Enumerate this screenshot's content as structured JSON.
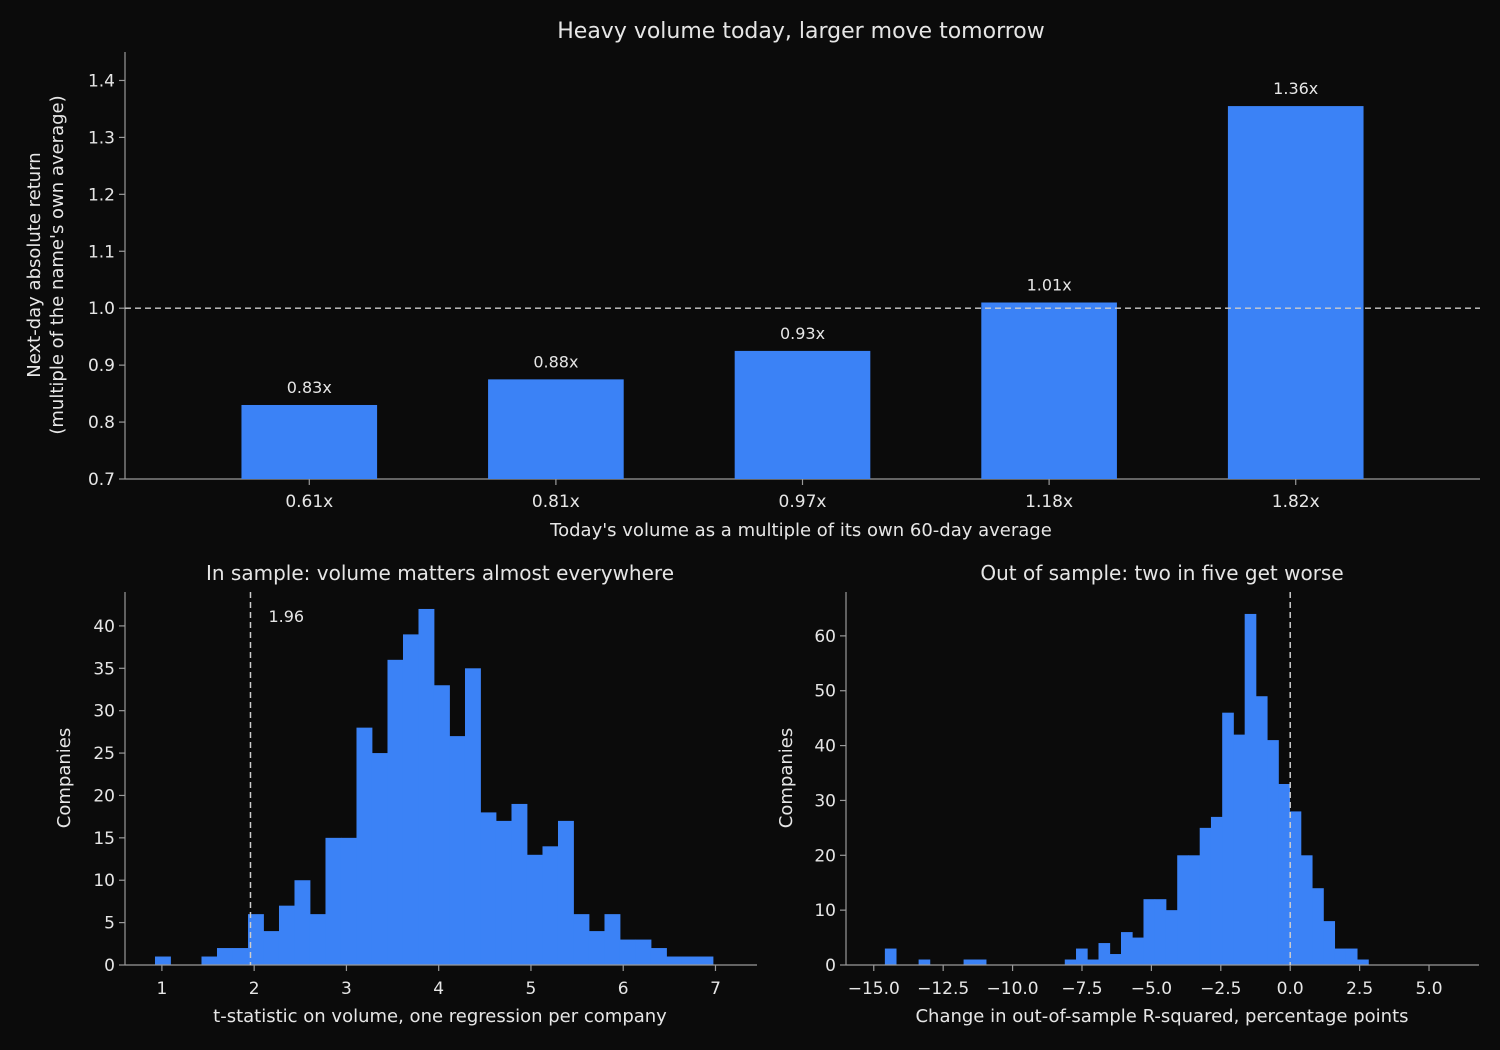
{
  "colors": {
    "background": "#0b0b0b",
    "bar": "#3b82f6",
    "text": "#e6e6e6",
    "axis": "#9a9a9a",
    "reference_line": "#cccccc"
  },
  "chart_data": [
    {
      "type": "bar",
      "title": "Heavy volume today, larger move tomorrow",
      "xlabel": "Today's volume as a multiple of its own 60-day average",
      "ylabel_lines": [
        "Next-day absolute return",
        "(multiple of the name's own average)"
      ],
      "categories": [
        "0.61x",
        "0.81x",
        "0.97x",
        "1.18x",
        "1.82x"
      ],
      "values": [
        0.83,
        0.875,
        0.925,
        1.01,
        1.355
      ],
      "value_labels": [
        "0.83x",
        "0.88x",
        "0.93x",
        "1.01x",
        "1.36x"
      ],
      "ylim": [
        0.7,
        1.45
      ],
      "yticks": [
        0.7,
        0.8,
        0.9,
        1.0,
        1.1,
        1.2,
        1.3,
        1.4
      ],
      "ytick_labels": [
        "0.7",
        "0.8",
        "0.9",
        "1.0",
        "1.1",
        "1.2",
        "1.3",
        "1.4"
      ],
      "reference_line": {
        "y": 1.0,
        "style": "dashed"
      },
      "grid": false
    },
    {
      "type": "histogram",
      "title": "In sample: volume matters almost everywhere",
      "xlabel": "t-statistic on volume, one regression per company",
      "ylabel": "Companies",
      "xlim": [
        0.6,
        7.45
      ],
      "ylim": [
        0,
        44
      ],
      "xticks": [
        1,
        2,
        3,
        4,
        5,
        6,
        7
      ],
      "xtick_labels": [
        "1",
        "2",
        "3",
        "4",
        "5",
        "6",
        "7"
      ],
      "yticks": [
        0,
        5,
        10,
        15,
        20,
        25,
        30,
        35,
        40
      ],
      "ytick_labels": [
        "0",
        "5",
        "10",
        "15",
        "20",
        "25",
        "30",
        "35",
        "40"
      ],
      "bins_start": 0.925,
      "bin_width": 0.168,
      "counts": [
        1,
        0,
        0,
        1,
        2,
        2,
        6,
        4,
        7,
        10,
        6,
        15,
        15,
        28,
        25,
        36,
        39,
        42,
        33,
        27,
        35,
        18,
        17,
        19,
        13,
        14,
        17,
        6,
        4,
        6,
        3,
        3,
        2,
        1,
        1,
        1
      ],
      "reference_line": {
        "x": 1.96,
        "label": "1.96",
        "style": "dashed"
      },
      "grid": false
    },
    {
      "type": "histogram",
      "title": "Out of sample: two in five get worse",
      "xlabel": "Change in out-of-sample R-squared, percentage points",
      "ylabel": "Companies",
      "xlim": [
        -16.0,
        6.8
      ],
      "ylim": [
        0,
        68
      ],
      "xticks": [
        -15,
        -12.5,
        -10,
        -7.5,
        -5,
        -2.5,
        0,
        2.5,
        5
      ],
      "xtick_labels": [
        "−15.0",
        "−12.5",
        "−10.0",
        "−7.5",
        "−5.0",
        "−2.5",
        "0.0",
        "2.5",
        "5.0"
      ],
      "yticks": [
        0,
        10,
        20,
        30,
        40,
        50,
        60
      ],
      "ytick_labels": [
        "0",
        "10",
        "20",
        "30",
        "40",
        "50",
        "60"
      ],
      "bins_start": -14.6,
      "bin_width": 0.405,
      "counts": [
        3,
        0,
        0,
        1,
        0,
        0,
        0,
        1,
        1,
        0,
        0,
        0,
        0,
        0,
        0,
        0,
        1,
        3,
        1,
        4,
        2,
        6,
        5,
        12,
        12,
        10,
        20,
        20,
        25,
        27,
        46,
        42,
        64,
        49,
        41,
        33,
        28,
        20,
        14,
        8,
        3,
        3,
        1
      ],
      "reference_line": {
        "x": 0,
        "style": "dashed"
      },
      "grid": false
    }
  ]
}
